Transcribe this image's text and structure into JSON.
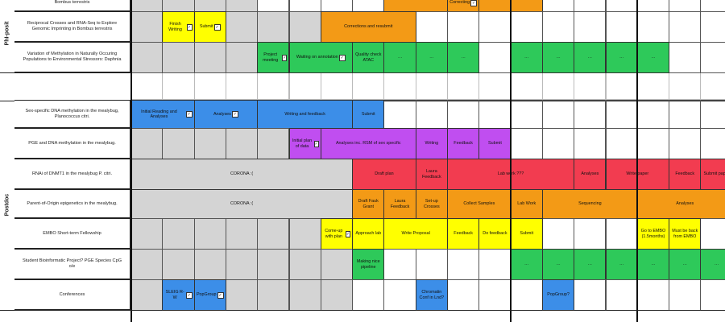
{
  "sections": [
    {
      "label": "PhI-posit",
      "id": "phd"
    },
    {
      "label": "Postdoc",
      "id": "postdoc"
    }
  ],
  "colors": {
    "grey": "#d4d4d4",
    "orange": "#f39a16",
    "yellow": "#ffff00",
    "green": "#2ec95a",
    "blue": "#3c8ee8",
    "purple": "#c04ef0",
    "red": "#f23c50",
    "white": "#ffffff"
  },
  "rows": [
    {
      "id": "row0",
      "section": "phd",
      "label": "Bombus terrestris",
      "bars": [
        {
          "text": "",
          "color": "orange",
          "col": 8,
          "span": 2
        },
        {
          "text": "Correcting",
          "color": "orange",
          "col": 10,
          "span": 1,
          "check": true
        },
        {
          "text": "",
          "color": "orange",
          "col": 11,
          "span": 2
        }
      ],
      "grey_cols": [
        0,
        1,
        2,
        3
      ]
    },
    {
      "id": "row1",
      "section": "phd",
      "label": "Reciprocal Crosses and RNA-Seq to Explore Genomic Imprinting in Bombus terrestris",
      "bars": [
        {
          "text": "Finish Writing",
          "color": "yellow",
          "col": 1,
          "span": 1,
          "check": true
        },
        {
          "text": "Submit",
          "color": "yellow",
          "col": 2,
          "span": 1,
          "check": true
        },
        {
          "text": "Corrections and resubmit",
          "color": "orange",
          "col": 6,
          "span": 3
        }
      ],
      "grey_cols": [
        0,
        3,
        4,
        5
      ]
    },
    {
      "id": "row2",
      "section": "phd",
      "label": "Variation of Methylation in Naturally Occuring Populations to Environmental Stressors: Daphnia",
      "bars": [
        {
          "text": "Project meeting",
          "color": "green",
          "col": 4,
          "span": 1,
          "check": true
        },
        {
          "text": "Waiting on annotation",
          "color": "green",
          "col": 5,
          "span": 2,
          "check": true
        },
        {
          "text": "Quality check ATAC",
          "color": "green",
          "col": 7,
          "span": 1
        },
        {
          "text": "…",
          "color": "green",
          "col": 8,
          "span": 1
        },
        {
          "text": "…",
          "color": "green",
          "col": 9,
          "span": 1
        },
        {
          "text": "…",
          "color": "green",
          "col": 10,
          "span": 1
        },
        {
          "text": "…",
          "color": "green",
          "col": 12,
          "span": 1
        },
        {
          "text": "…",
          "color": "green",
          "col": 13,
          "span": 1
        },
        {
          "text": "…",
          "color": "green",
          "col": 14,
          "span": 1
        },
        {
          "text": "…",
          "color": "green",
          "col": 15,
          "span": 1
        },
        {
          "text": "…",
          "color": "green",
          "col": 16,
          "span": 1
        }
      ],
      "grey_cols": [
        0,
        1,
        2,
        3
      ]
    },
    {
      "id": "row3",
      "section": "postdoc",
      "label": "Sex-specific DNA methylation in the mealybug, Planococcus citri.",
      "bars": [
        {
          "text": "Initial Reading and Analyses",
          "color": "blue",
          "col": 0,
          "span": 2,
          "check": true
        },
        {
          "text": "Analyses",
          "color": "blue",
          "col": 2,
          "span": 2,
          "check": true
        },
        {
          "text": "Writing and feedback",
          "color": "blue",
          "col": 4,
          "span": 3
        },
        {
          "text": "Submit",
          "color": "blue",
          "col": 7,
          "span": 1
        }
      ],
      "grey_cols": []
    },
    {
      "id": "row4",
      "section": "postdoc",
      "label": "PGE and DNA methylation in the mealybug.",
      "bars": [
        {
          "text": "Initial plan of data",
          "color": "purple",
          "col": 5,
          "span": 1,
          "check": true
        },
        {
          "text": "Analyses inc. RSM of sex specific",
          "color": "purple",
          "col": 6,
          "span": 3
        },
        {
          "text": "Writing",
          "color": "purple",
          "col": 9,
          "span": 1
        },
        {
          "text": "Feedback",
          "color": "purple",
          "col": 10,
          "span": 1
        },
        {
          "text": "Submit",
          "color": "purple",
          "col": 11,
          "span": 1
        }
      ],
      "grey_cols": [
        0,
        1,
        2,
        3,
        4
      ]
    },
    {
      "id": "row5",
      "section": "postdoc",
      "label": "RNAi of DNMT1 in the mealybug P. citri.",
      "bars": [
        {
          "text": "CORONA :(",
          "color": "grey",
          "col": 0,
          "span": 7
        },
        {
          "text": "Draft plan",
          "color": "red",
          "col": 7,
          "span": 2
        },
        {
          "text": "Laura Feedback",
          "color": "red",
          "col": 9,
          "span": 1
        },
        {
          "text": "Lab work ???",
          "color": "red",
          "col": 10,
          "span": 4
        },
        {
          "text": "Analyses",
          "color": "red",
          "col": 14,
          "span": 1
        },
        {
          "text": "Write paper",
          "color": "red",
          "col": 15,
          "span": 2
        },
        {
          "text": "Feedback",
          "color": "red",
          "col": 17,
          "span": 1
        },
        {
          "text": "Submit paper",
          "color": "red",
          "col": 18,
          "span": 1
        }
      ],
      "grey_cols": []
    },
    {
      "id": "row6",
      "section": "postdoc",
      "label": "Parent-of-Origin epigenetics in the mealybug.",
      "bars": [
        {
          "text": "CORONA :(",
          "color": "grey",
          "col": 0,
          "span": 7
        },
        {
          "text": "Draft Fauk Grant",
          "color": "orange",
          "col": 7,
          "span": 1
        },
        {
          "text": "Laura Feedback",
          "color": "orange",
          "col": 8,
          "span": 1
        },
        {
          "text": "Set-up Crosses",
          "color": "orange",
          "col": 9,
          "span": 1
        },
        {
          "text": "Collect Samples",
          "color": "orange",
          "col": 10,
          "span": 2
        },
        {
          "text": "Lab Work",
          "color": "orange",
          "col": 12,
          "span": 1
        },
        {
          "text": "Sequencing",
          "color": "orange",
          "col": 13,
          "span": 3
        },
        {
          "text": "Analyses",
          "color": "orange",
          "col": 16,
          "span": 3
        }
      ],
      "grey_cols": []
    },
    {
      "id": "row7",
      "section": "postdoc",
      "label": "EMBO Short-term Fellowship",
      "bars": [
        {
          "text": "Come-up with plan",
          "color": "yellow",
          "col": 6,
          "span": 1,
          "check": true
        },
        {
          "text": "Approach lab",
          "color": "yellow",
          "col": 7,
          "span": 1
        },
        {
          "text": "Write Proposal",
          "color": "yellow",
          "col": 8,
          "span": 2
        },
        {
          "text": "Feedback",
          "color": "yellow",
          "col": 10,
          "span": 1
        },
        {
          "text": "Do feedback",
          "color": "yellow",
          "col": 11,
          "span": 1
        },
        {
          "text": "Submit",
          "color": "yellow",
          "col": 12,
          "span": 1
        },
        {
          "text": "Go to EMBO (1.5months)",
          "color": "yellow",
          "col": 16,
          "span": 1
        },
        {
          "text": "Must be back from EMBO",
          "color": "yellow",
          "col": 17,
          "span": 1
        }
      ],
      "grey_cols": [
        0,
        1,
        2,
        3,
        4,
        5
      ]
    },
    {
      "id": "row8",
      "section": "postdoc",
      "label": "Student Bioinformatic Project? PGE Species CpG o/e",
      "bars": [
        {
          "text": "Making nice pipeline",
          "color": "green",
          "col": 7,
          "span": 1
        },
        {
          "text": "…",
          "color": "green",
          "col": 12,
          "span": 1
        },
        {
          "text": "…",
          "color": "green",
          "col": 13,
          "span": 1
        },
        {
          "text": "…",
          "color": "green",
          "col": 14,
          "span": 1
        },
        {
          "text": "…",
          "color": "green",
          "col": 15,
          "span": 1
        },
        {
          "text": "…",
          "color": "green",
          "col": 16,
          "span": 1
        },
        {
          "text": "…",
          "color": "green",
          "col": 17,
          "span": 1
        },
        {
          "text": "…",
          "color": "green",
          "col": 18,
          "span": 1
        }
      ],
      "grey_cols": [
        0,
        1,
        2,
        3,
        4,
        5,
        6
      ]
    },
    {
      "id": "row9",
      "section": "postdoc",
      "label": "Conferences",
      "bars": [
        {
          "text": "SLEIG R-W",
          "color": "blue",
          "col": 1,
          "span": 1,
          "check": true
        },
        {
          "text": "PopGroup",
          "color": "blue",
          "col": 2,
          "span": 1,
          "check": true
        },
        {
          "text": "Chromatin Conf in Lnd?",
          "color": "blue",
          "col": 9,
          "span": 1
        },
        {
          "text": "PopGroup?",
          "color": "blue",
          "col": 13,
          "span": 1
        }
      ],
      "grey_cols": [
        0,
        3,
        4,
        5,
        6
      ]
    }
  ],
  "check_symbol": "✓"
}
